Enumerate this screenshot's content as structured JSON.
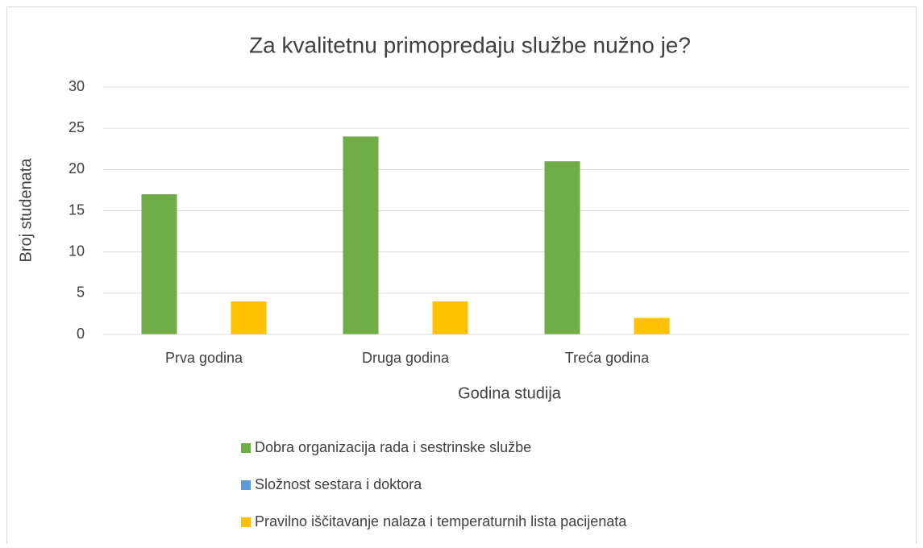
{
  "chart_data": {
    "type": "bar",
    "title": "Za kvalitetnu primopredaju službe nužno je?",
    "x_label": "Godina studija",
    "y_label": "Broj studenata",
    "categories": [
      "Prva godina",
      "Druga godina",
      "Treća godina",
      null
    ],
    "series": [
      {
        "name": "Dobra organizacija rada i sestrinske službe",
        "color": "#70ad47",
        "values": [
          17,
          24,
          21,
          null
        ]
      },
      {
        "name": "Složnost sestara i doktora",
        "color": "#5b9bd5",
        "values": [
          0,
          0,
          0,
          null
        ]
      },
      {
        "name": "Pravilno iščitavanje nalaza i temperaturnih lista pacijenata",
        "color": "#ffc000",
        "values": [
          4,
          4,
          2,
          null
        ]
      }
    ],
    "ylim": [
      0,
      30
    ],
    "yticks": [
      0,
      5,
      10,
      15,
      20,
      25,
      30
    ],
    "grid": true,
    "legend": "bottom"
  }
}
